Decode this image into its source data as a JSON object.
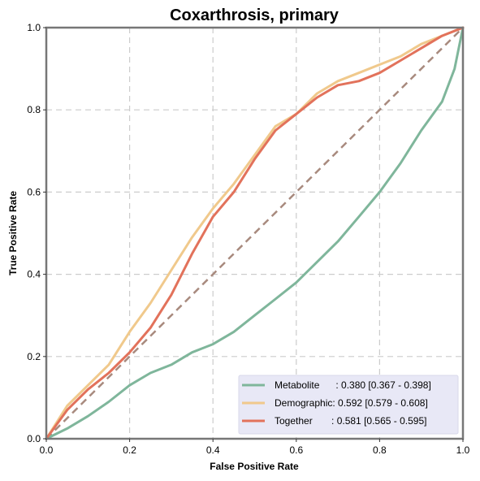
{
  "chart_data": {
    "type": "line",
    "title": "Coxarthrosis, primary",
    "xlabel": "False Positive Rate",
    "ylabel": "True Positive Rate",
    "xlim": [
      0,
      1
    ],
    "ylim": [
      0,
      1
    ],
    "xticks": [
      "0.0",
      "0.2",
      "0.4",
      "0.6",
      "0.8",
      "1.0"
    ],
    "yticks": [
      "0.0",
      "0.2",
      "0.4",
      "0.6",
      "0.8",
      "1.0"
    ],
    "grid": true,
    "legend_position": "bottom-right",
    "series": [
      {
        "name": "Metabolite",
        "legend_label": "Metabolite      : 0.380 [0.367 - 0.398]",
        "color": "#7fb69b",
        "x": [
          0,
          0.05,
          0.1,
          0.15,
          0.2,
          0.25,
          0.3,
          0.35,
          0.4,
          0.45,
          0.5,
          0.55,
          0.6,
          0.65,
          0.7,
          0.75,
          0.8,
          0.85,
          0.9,
          0.95,
          0.98,
          1.0
        ],
        "y": [
          0,
          0.025,
          0.055,
          0.09,
          0.13,
          0.16,
          0.18,
          0.21,
          0.23,
          0.26,
          0.3,
          0.34,
          0.38,
          0.43,
          0.48,
          0.54,
          0.6,
          0.67,
          0.75,
          0.82,
          0.9,
          1.0
        ]
      },
      {
        "name": "Demographic",
        "legend_label": "Demographic: 0.592 [0.579 - 0.608]",
        "color": "#f0c98c",
        "x": [
          0,
          0.05,
          0.1,
          0.15,
          0.2,
          0.25,
          0.3,
          0.35,
          0.4,
          0.45,
          0.5,
          0.55,
          0.6,
          0.65,
          0.7,
          0.75,
          0.8,
          0.85,
          0.9,
          0.95,
          1.0
        ],
        "y": [
          0,
          0.08,
          0.13,
          0.18,
          0.26,
          0.33,
          0.41,
          0.49,
          0.56,
          0.62,
          0.69,
          0.76,
          0.79,
          0.84,
          0.87,
          0.89,
          0.91,
          0.93,
          0.96,
          0.98,
          1.0
        ]
      },
      {
        "name": "Together",
        "legend_label": "Together       : 0.581 [0.565 - 0.595]",
        "color": "#e2725b",
        "x": [
          0,
          0.05,
          0.1,
          0.15,
          0.2,
          0.25,
          0.3,
          0.35,
          0.4,
          0.45,
          0.5,
          0.55,
          0.6,
          0.65,
          0.7,
          0.75,
          0.8,
          0.85,
          0.9,
          0.95,
          1.0
        ],
        "y": [
          0,
          0.07,
          0.12,
          0.16,
          0.21,
          0.27,
          0.35,
          0.45,
          0.54,
          0.6,
          0.68,
          0.75,
          0.79,
          0.83,
          0.86,
          0.87,
          0.89,
          0.92,
          0.95,
          0.98,
          1.0
        ]
      }
    ],
    "reference_line": {
      "x": [
        0,
        1
      ],
      "y": [
        0,
        1
      ],
      "color": "#a88a7e",
      "style": "dashed"
    }
  }
}
